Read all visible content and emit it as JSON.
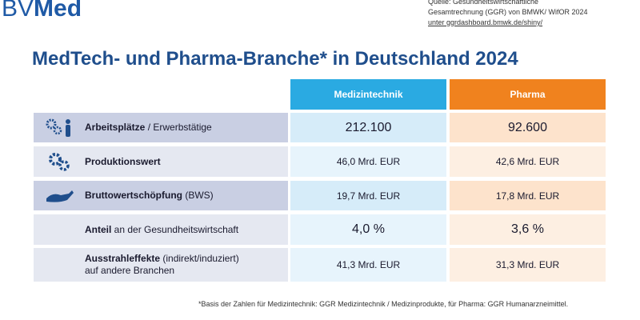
{
  "header": {
    "logo": {
      "prefix": "BV",
      "name": "Med"
    },
    "source": [
      "Quelle: Gesundheitswirtschaftliche",
      "Gesamtrechnung (GGR) von BMWK/ WifOR 2024",
      "unter ggrdashboard.bmwk.de/shiny/"
    ]
  },
  "title": "MedTech- und Pharma-Branche* in Deutschland 2024",
  "table": {
    "columns": [
      "Medizintechnik",
      "Pharma"
    ],
    "rows": [
      {
        "label_bold": "Arbeitsplätze",
        "label_rest": " / Erwerbstätige",
        "values": [
          "212.100",
          "92.600"
        ]
      },
      {
        "label_bold": "Produktionswert",
        "label_rest": "",
        "values": [
          "46,0 Mrd. EUR",
          "42,6 Mrd. EUR"
        ]
      },
      {
        "label_bold": "Bruttowertschöpfung",
        "label_rest": " (BWS)",
        "values": [
          "19,7 Mrd. EUR",
          "17,8 Mrd. EUR"
        ]
      },
      {
        "label_bold": "Anteil",
        "label_rest": " an der Gesundheitswirtschaft",
        "values": [
          "4,0 %",
          "3,6 %"
        ]
      },
      {
        "label_bold": "Ausstrahleffekte",
        "label_rest": " (indirekt/induziert)",
        "label_line2": "auf andere Branchen",
        "values": [
          "41,3 Mrd. EUR",
          "31,3 Mrd. EUR"
        ]
      }
    ]
  },
  "footnote": "*Basis der Zahlen für Medizintechnik: GGR Medizintechnik / Medizinprodukte, für Pharma: GGR Humanarzneimittel."
}
